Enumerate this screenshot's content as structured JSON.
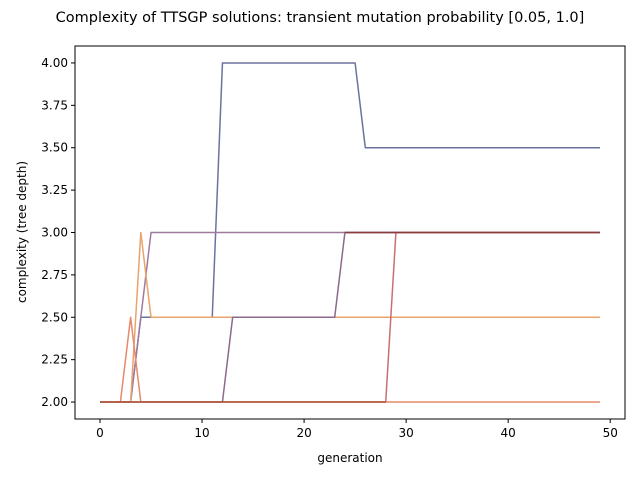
{
  "chart_data": {
    "type": "line",
    "title": "Complexity of TTSGP solutions: transient mutation probability [0.05, 1.0]",
    "xlabel": "generation",
    "ylabel": "complexity (tree depth)",
    "xlim": [
      -2.45,
      51.45
    ],
    "ylim": [
      1.9,
      4.1
    ],
    "xticks": [
      0,
      10,
      20,
      30,
      40,
      50
    ],
    "yticks": [
      2.0,
      2.25,
      2.5,
      2.75,
      3.0,
      3.25,
      3.5,
      3.75,
      4.0
    ],
    "ytick_labels": [
      "2.00",
      "2.25",
      "2.50",
      "2.75",
      "3.00",
      "3.25",
      "3.50",
      "3.75",
      "4.00"
    ],
    "grid": false,
    "legend": "none",
    "series": [
      {
        "color": "#6b729e",
        "points": [
          [
            0,
            2.0
          ],
          [
            3,
            2.0
          ],
          [
            4,
            2.5
          ],
          [
            11,
            2.5
          ],
          [
            12,
            4.0
          ],
          [
            25,
            4.0
          ],
          [
            26,
            3.5
          ],
          [
            49,
            3.5
          ]
        ]
      },
      {
        "color": "#9e7b9e",
        "points": [
          [
            0,
            2.0
          ],
          [
            3,
            2.0
          ],
          [
            4,
            2.5
          ],
          [
            5,
            3.0
          ],
          [
            49,
            3.0
          ]
        ]
      },
      {
        "color": "#e8a46c",
        "points": [
          [
            0,
            2.0
          ],
          [
            3,
            2.0
          ],
          [
            4,
            3.0
          ],
          [
            5,
            2.5
          ],
          [
            49,
            2.5
          ]
        ]
      },
      {
        "color": "#e58a6a",
        "points": [
          [
            0,
            2.0
          ],
          [
            2,
            2.0
          ],
          [
            3,
            2.5
          ],
          [
            4,
            2.0
          ],
          [
            49,
            2.0
          ]
        ]
      },
      {
        "color": "#8c6a8c",
        "points": [
          [
            0,
            2.0
          ],
          [
            12,
            2.0
          ],
          [
            13,
            2.5
          ],
          [
            23,
            2.5
          ],
          [
            24,
            3.0
          ],
          [
            49,
            3.0
          ]
        ]
      },
      {
        "color": "#c87070",
        "points": [
          [
            0,
            2.0
          ],
          [
            28,
            2.0
          ],
          [
            29,
            3.0
          ],
          [
            49,
            3.0
          ]
        ]
      },
      {
        "color": "#8b3a3a",
        "points": [
          [
            24,
            3.0
          ],
          [
            49,
            3.0
          ]
        ]
      },
      {
        "color": "#b05a3a",
        "points": [
          [
            0,
            2.0
          ],
          [
            28,
            2.0
          ]
        ]
      }
    ]
  }
}
